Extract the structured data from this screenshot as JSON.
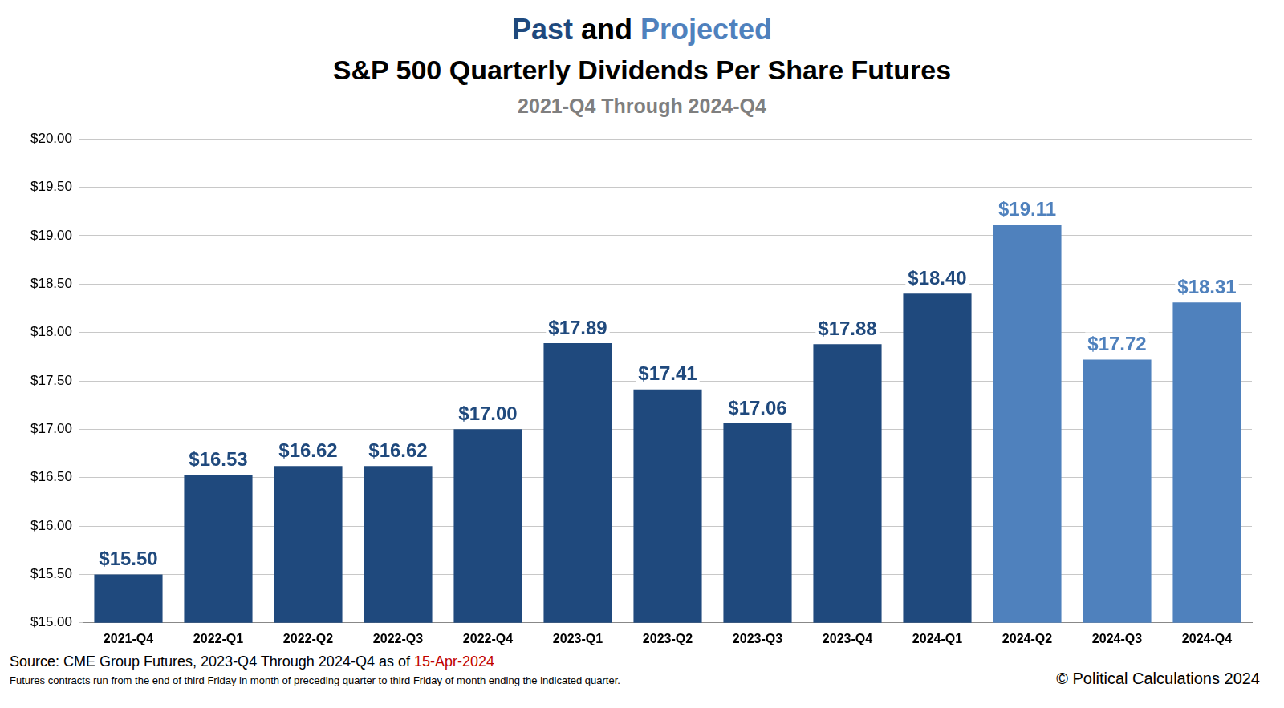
{
  "chart_data": {
    "type": "bar",
    "title": "Past and Projected",
    "subtitle": "S&P 500 Quarterly Dividends Per Share Futures",
    "annotations": [
      "2021-Q4 Through 2024-Q4",
      "Source:  CME Group Futures, 2023-Q4 Through 2024-Q4 as of 15-Apr-2024",
      "Futures contracts run from the end of third Friday in month of preceding quarter to third Friday of month ending the indicated quarter.",
      "© Political Calculations 2024"
    ],
    "categories": [
      "2021-Q4",
      "2022-Q1",
      "2022-Q2",
      "2022-Q3",
      "2022-Q4",
      "2023-Q1",
      "2023-Q2",
      "2023-Q3",
      "2023-Q4",
      "2024-Q1",
      "2024-Q2",
      "2024-Q3",
      "2024-Q4"
    ],
    "values": [
      15.5,
      16.53,
      16.62,
      16.62,
      17.0,
      17.89,
      17.41,
      17.06,
      17.88,
      18.4,
      19.11,
      17.72,
      18.31
    ],
    "value_labels": [
      "$15.50",
      "$16.53",
      "$16.62",
      "$16.62",
      "$17.00",
      "$17.89",
      "$17.41",
      "$17.06",
      "$17.88",
      "$18.40",
      "$19.11",
      "$17.72",
      "$18.31"
    ],
    "colors": [
      "#1f497d",
      "#1f497d",
      "#1f497d",
      "#1f497d",
      "#1f497d",
      "#1f497d",
      "#1f497d",
      "#1f497d",
      "#1f497d",
      "#1f497d",
      "#4f81bd",
      "#4f81bd",
      "#4f81bd"
    ],
    "data_labels": true,
    "ylim": [
      15,
      20
    ],
    "yticks": [
      {
        "value": 15,
        "label": "$15.00"
      },
      {
        "value": 15.5,
        "label": "$15.50"
      },
      {
        "value": 16,
        "label": "$16.00"
      },
      {
        "value": 16.5,
        "label": "$16.50"
      },
      {
        "value": 17,
        "label": "$17.00"
      },
      {
        "value": 17.5,
        "label": "$17.50"
      },
      {
        "value": 18,
        "label": "$18.00"
      },
      {
        "value": 18.5,
        "label": "$18.50"
      },
      {
        "value": 19,
        "label": "$19.00"
      },
      {
        "value": 19.5,
        "label": "$19.50"
      },
      {
        "value": 20,
        "label": "$20.00"
      }
    ],
    "grid": true
  }
}
